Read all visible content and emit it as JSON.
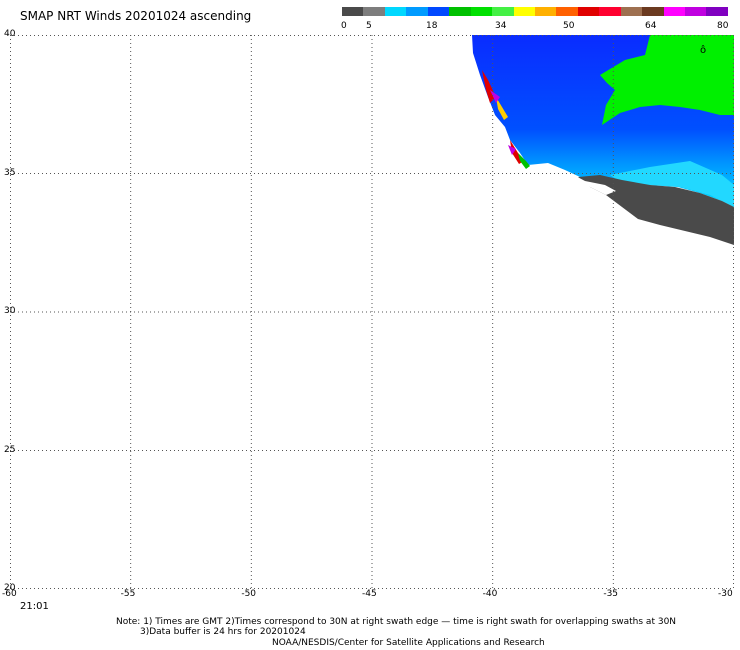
{
  "title": "SMAP NRT Winds 20201024 ascending",
  "colorbar": {
    "colors": [
      "#4a4a4a",
      "#7d7d7d",
      "#00d8ff",
      "#009bff",
      "#0048ff",
      "#00c000",
      "#00e000",
      "#44f044",
      "#ffff00",
      "#ffb000",
      "#ff6000",
      "#e00000",
      "#ff0030",
      "#9e7050",
      "#6b3a20",
      "#ff00ff",
      "#c000e0",
      "#8000c0"
    ],
    "labels": [
      {
        "text": "0"
      },
      {
        "text": "5"
      },
      {
        "text": "18"
      },
      {
        "text": "34"
      },
      {
        "text": "50"
      },
      {
        "text": "64"
      },
      {
        "text": "80"
      }
    ]
  },
  "map": {
    "lon_range": [
      -60,
      -30
    ],
    "lat_range": [
      20,
      40
    ],
    "lon_ticks": [
      "-60",
      "-55",
      "-50",
      "-45",
      "-40",
      "-35",
      "-30"
    ],
    "lat_ticks": [
      "40",
      "35",
      "30",
      "25",
      "20"
    ]
  },
  "time_label": "21:01",
  "note": {
    "line1": "Note: 1) Times are GMT  2)Times correspond to 30N at right swath edge — time is right swath for overlapping swaths at 30N",
    "line2": "3)Data buffer is 24 hrs for 20201024"
  },
  "footer": "NOAA/NESDIS/Center for Satellite Applications and Research",
  "colors": {
    "low_wind": "#0028ff",
    "mid_wind": "#00f000",
    "light_wind": "#00d8ff",
    "rain_flag": "#4a4a4a"
  }
}
